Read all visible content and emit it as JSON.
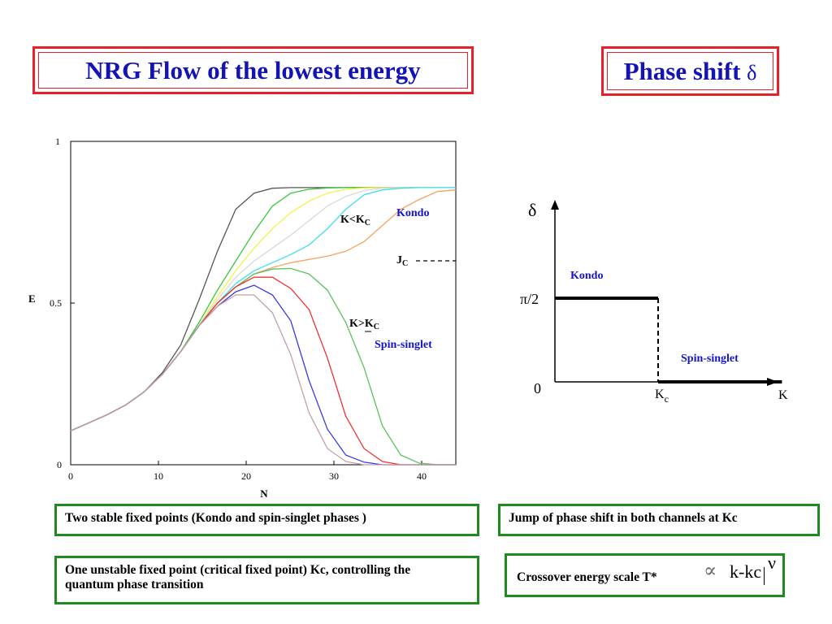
{
  "titles": {
    "left": "NRG Flow of the lowest energy",
    "right": "Phase shift",
    "right_symbol": "δ"
  },
  "chart_data": [
    {
      "type": "line",
      "xlabel": "N",
      "ylabel": "E",
      "xlim": [
        0,
        42
      ],
      "ylim": [
        0,
        1
      ],
      "xticks": [
        "0",
        "10",
        "20",
        "30",
        "40"
      ],
      "yticks": [
        "0",
        "0.5",
        "1"
      ],
      "grid": false,
      "annotations": {
        "kkc_upper_main": "K<K",
        "kkc_upper_sub": "C",
        "kondo": "Kondo",
        "jc_main": "J",
        "jc_sub": "C",
        "kkc_lower_main": "K>K",
        "kkc_lower_sub": "C",
        "spin_singlet": "Spin-singlet"
      },
      "series": [
        {
          "color": "#555555",
          "x": [
            0,
            2,
            4,
            6,
            8,
            10,
            12,
            14,
            16,
            18,
            20,
            22,
            24,
            26,
            28,
            30,
            32,
            34,
            36,
            38,
            40,
            42
          ],
          "y": [
            0.105,
            0.13,
            0.155,
            0.185,
            0.225,
            0.285,
            0.37,
            0.51,
            0.66,
            0.79,
            0.84,
            0.855,
            0.857,
            0.857,
            0.857,
            0.857,
            0.857,
            0.857,
            0.857,
            0.857,
            0.857,
            0.857
          ]
        },
        {
          "color": "#3cc63c",
          "x": [
            0,
            2,
            4,
            6,
            8,
            10,
            12,
            14,
            16,
            18,
            20,
            22,
            24,
            26,
            28,
            30,
            32,
            34,
            36,
            38,
            40,
            42
          ],
          "y": [
            0.105,
            0.13,
            0.155,
            0.185,
            0.225,
            0.28,
            0.35,
            0.44,
            0.54,
            0.63,
            0.72,
            0.8,
            0.84,
            0.852,
            0.856,
            0.857,
            0.857,
            0.857,
            0.857,
            0.857,
            0.857,
            0.857
          ]
        },
        {
          "color": "#f2f24a",
          "x": [
            0,
            2,
            4,
            6,
            8,
            10,
            12,
            14,
            16,
            18,
            20,
            22,
            24,
            26,
            28,
            30,
            32,
            34,
            36,
            38,
            40,
            42
          ],
          "y": [
            0.105,
            0.13,
            0.155,
            0.185,
            0.225,
            0.28,
            0.35,
            0.43,
            0.52,
            0.6,
            0.67,
            0.73,
            0.78,
            0.815,
            0.84,
            0.852,
            0.856,
            0.857,
            0.857,
            0.857,
            0.857,
            0.857
          ]
        },
        {
          "color": "#d8d8d8",
          "x": [
            0,
            2,
            4,
            6,
            8,
            10,
            12,
            14,
            16,
            18,
            20,
            22,
            24,
            26,
            28,
            30,
            32,
            34,
            36,
            38,
            40,
            42
          ],
          "y": [
            0.105,
            0.13,
            0.155,
            0.185,
            0.225,
            0.28,
            0.35,
            0.43,
            0.51,
            0.58,
            0.63,
            0.67,
            0.71,
            0.755,
            0.8,
            0.83,
            0.848,
            0.855,
            0.857,
            0.857,
            0.857,
            0.857
          ]
        },
        {
          "color": "#3ae0f0",
          "x": [
            0,
            2,
            4,
            6,
            8,
            10,
            12,
            14,
            16,
            18,
            20,
            22,
            24,
            26,
            28,
            30,
            32,
            34,
            36,
            38,
            40,
            42
          ],
          "y": [
            0.105,
            0.13,
            0.155,
            0.185,
            0.225,
            0.28,
            0.35,
            0.43,
            0.5,
            0.56,
            0.6,
            0.625,
            0.65,
            0.68,
            0.73,
            0.79,
            0.835,
            0.85,
            0.855,
            0.857,
            0.857,
            0.857
          ]
        },
        {
          "color": "#f4a460",
          "x": [
            0,
            2,
            4,
            6,
            8,
            10,
            12,
            14,
            16,
            18,
            20,
            22,
            24,
            26,
            28,
            30,
            32,
            34,
            36,
            38,
            40,
            42
          ],
          "y": [
            0.105,
            0.13,
            0.155,
            0.185,
            0.225,
            0.28,
            0.35,
            0.43,
            0.5,
            0.55,
            0.59,
            0.61,
            0.625,
            0.635,
            0.645,
            0.66,
            0.69,
            0.74,
            0.79,
            0.82,
            0.845,
            0.85
          ]
        },
        {
          "color": "#5cc05c",
          "x": [
            0,
            2,
            4,
            6,
            8,
            10,
            12,
            14,
            16,
            18,
            20,
            22,
            24,
            26,
            28,
            30,
            32,
            34,
            36,
            38,
            40,
            42
          ],
          "y": [
            0.105,
            0.13,
            0.155,
            0.185,
            0.225,
            0.28,
            0.35,
            0.43,
            0.5,
            0.55,
            0.59,
            0.605,
            0.607,
            0.59,
            0.54,
            0.44,
            0.3,
            0.12,
            0.03,
            0.005,
            0.0,
            0.0
          ]
        },
        {
          "color": "#f03030",
          "x": [
            0,
            2,
            4,
            6,
            8,
            10,
            12,
            14,
            16,
            18,
            20,
            22,
            24,
            26,
            28,
            30,
            32,
            34,
            36,
            38,
            40,
            42
          ],
          "y": [
            0.105,
            0.13,
            0.155,
            0.185,
            0.225,
            0.28,
            0.35,
            0.43,
            0.5,
            0.55,
            0.58,
            0.58,
            0.545,
            0.48,
            0.33,
            0.15,
            0.05,
            0.01,
            0.0,
            0.0,
            0.0,
            0.0
          ]
        },
        {
          "color": "#3a3ae0",
          "x": [
            0,
            2,
            4,
            6,
            8,
            10,
            12,
            14,
            16,
            18,
            20,
            22,
            24,
            26,
            28,
            30,
            32,
            34,
            36,
            38,
            40,
            42
          ],
          "y": [
            0.105,
            0.13,
            0.155,
            0.185,
            0.225,
            0.28,
            0.35,
            0.43,
            0.49,
            0.535,
            0.555,
            0.525,
            0.445,
            0.26,
            0.11,
            0.03,
            0.008,
            0.0,
            0.0,
            0.0,
            0.0,
            0.0
          ]
        },
        {
          "color": "#c4a0a0",
          "x": [
            0,
            2,
            4,
            6,
            8,
            10,
            12,
            14,
            16,
            18,
            20,
            22,
            24,
            26,
            28,
            30,
            32,
            34,
            36,
            38,
            40,
            42
          ],
          "y": [
            0.105,
            0.13,
            0.155,
            0.185,
            0.225,
            0.28,
            0.35,
            0.43,
            0.49,
            0.525,
            0.525,
            0.47,
            0.34,
            0.16,
            0.05,
            0.01,
            0.0,
            0.0,
            0.0,
            0.0,
            0.0,
            0.0
          ]
        }
      ]
    },
    {
      "type": "line",
      "ylabel": "δ",
      "xlabel": "K",
      "yticks": [
        "0",
        "π/2"
      ],
      "xticks_main": "K",
      "xticks_sub": "c",
      "annotations": {
        "kondo": "Kondo",
        "spin_singlet": "Spin-singlet"
      },
      "series": [
        {
          "name": "",
          "x": [
            0,
            1
          ],
          "y": [
            1.5708,
            1.5708
          ]
        },
        {
          "name": "",
          "x": [
            1,
            2.2
          ],
          "y": [
            0,
            0
          ]
        }
      ]
    }
  ],
  "notes": {
    "note1": "Two stable fixed points (Kondo and spin-singlet phases )",
    "note2": "Jump of phase shift in both channels at Kc",
    "note3": "One unstable fixed point (critical fixed point) Kc, controlling the quantum phase transition",
    "note4_label": "Crossover energy scale T*",
    "note4_prop": "∝",
    "note4_expr": "k-kc",
    "note4_exp": "ν"
  }
}
